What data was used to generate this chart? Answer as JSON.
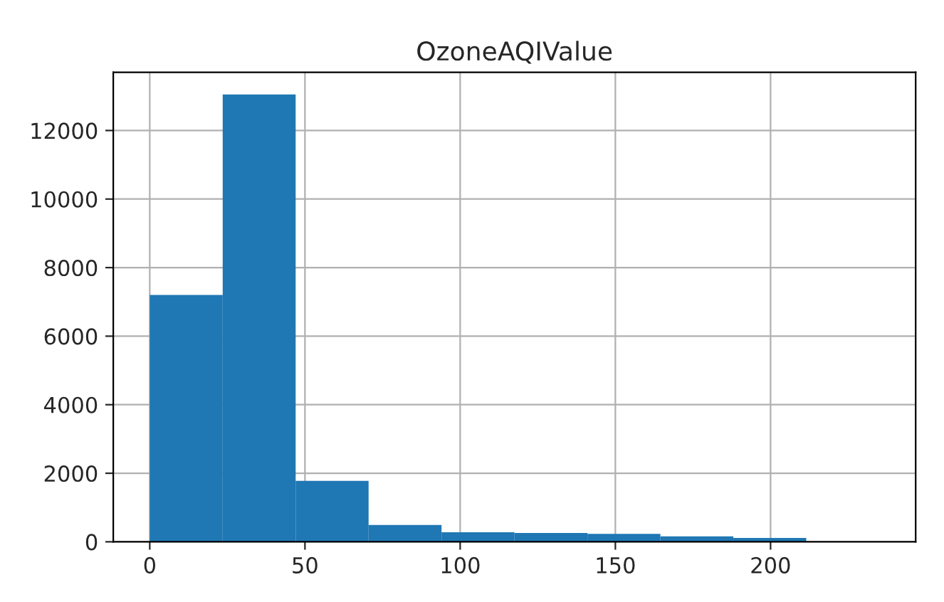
{
  "chart_data": {
    "type": "histogram",
    "title": "OzoneAQIValue",
    "bins": [
      0,
      23.5,
      47,
      70.5,
      94,
      117.5,
      141,
      164.5,
      188,
      211.5,
      235
    ],
    "values": [
      7200,
      13050,
      1780,
      490,
      280,
      260,
      230,
      160,
      110,
      null
    ],
    "color": "#1f77b4",
    "xlim": [
      -11.75,
      246.75
    ],
    "xticks": [
      0,
      50,
      100,
      150,
      200
    ],
    "ylim": [
      0,
      13700
    ],
    "yticks": [
      0,
      2000,
      4000,
      6000,
      8000,
      10000,
      12000
    ],
    "grid": true
  }
}
